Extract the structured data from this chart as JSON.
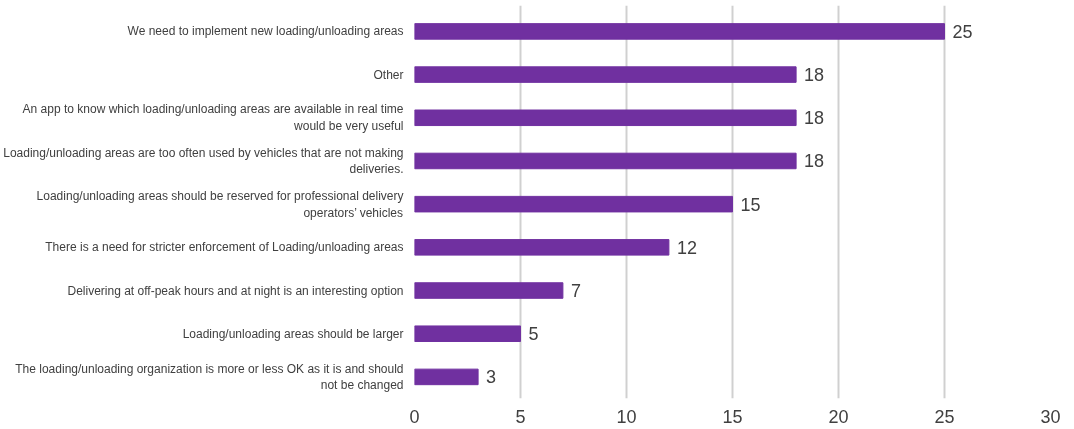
{
  "chart_data": {
    "type": "bar",
    "orientation": "horizontal",
    "categories": [
      "We need to implement new loading/unloading areas",
      "Other",
      "An app to know which loading/unloading areas are available in real time would be very useful",
      "Loading/unloading areas are too often used by vehicles that are not making deliveries.",
      "Loading/unloading areas should be reserved for professional delivery operators’ vehicles",
      "There is a need for stricter enforcement of Loading/unloading areas",
      "Delivering at off-peak hours and at night is an interesting option",
      "Loading/unloading areas should be larger",
      "The loading/unloading organization is more or less OK as it is and should not be changed"
    ],
    "values": [
      25,
      18,
      18,
      18,
      15,
      12,
      7,
      5,
      3
    ],
    "color": "#7030a0",
    "xlim": [
      0,
      30
    ],
    "xticks": [
      0,
      5,
      10,
      15,
      20,
      25,
      30
    ],
    "grid": "x",
    "data_labels": true
  }
}
